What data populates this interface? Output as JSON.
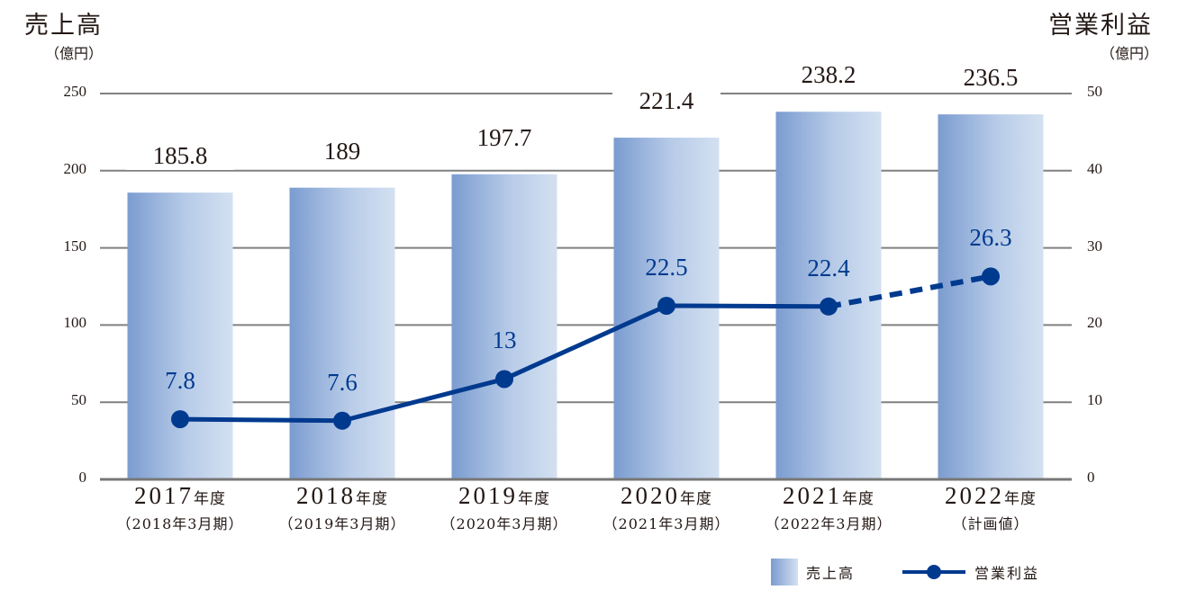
{
  "chart_data": {
    "type": "bar+line",
    "title_left": "売上高",
    "unit_left": "（億円）",
    "title_right": "営業利益",
    "unit_right": "（億円）",
    "categories": [
      "2017年度",
      "2018年度",
      "2019年度",
      "2020年度",
      "2021年度",
      "2022年度"
    ],
    "category_years": [
      "2017",
      "2018",
      "2019",
      "2020",
      "2021",
      "2022"
    ],
    "category_suffix": "年度",
    "category_sublabels": [
      "（2018年3月期）",
      "（2019年3月期）",
      "（2020年3月期）",
      "（2021年3月期）",
      "（2022年3月期）",
      "（計画値）"
    ],
    "series": [
      {
        "name": "売上高",
        "type": "bar",
        "axis": "left",
        "values": [
          185.8,
          189,
          197.7,
          221.4,
          238.2,
          236.5
        ],
        "labels": [
          "185.8",
          "189",
          "197.7",
          "221.4",
          "238.2",
          "236.5"
        ],
        "color_dark": "#7b9cd0",
        "color_light": "#d3e0f1"
      },
      {
        "name": "営業利益",
        "type": "line",
        "axis": "right",
        "values": [
          7.8,
          7.6,
          13,
          22.5,
          22.4,
          26.3
        ],
        "labels": [
          "7.8",
          "7.6",
          "13",
          "22.5",
          "22.4",
          "26.3"
        ],
        "color": "#003a8f",
        "dashed_last_segment": true
      }
    ],
    "ylim_left": [
      0,
      250
    ],
    "yticks_left": [
      "0",
      "50",
      "100",
      "150",
      "200",
      "250"
    ],
    "ylim_right": [
      0,
      50
    ],
    "yticks_right": [
      "0",
      "10",
      "20",
      "30",
      "40",
      "50"
    ],
    "grid": true,
    "legend_position": "bottom-right",
    "legend": [
      "売上高",
      "営業利益"
    ]
  }
}
